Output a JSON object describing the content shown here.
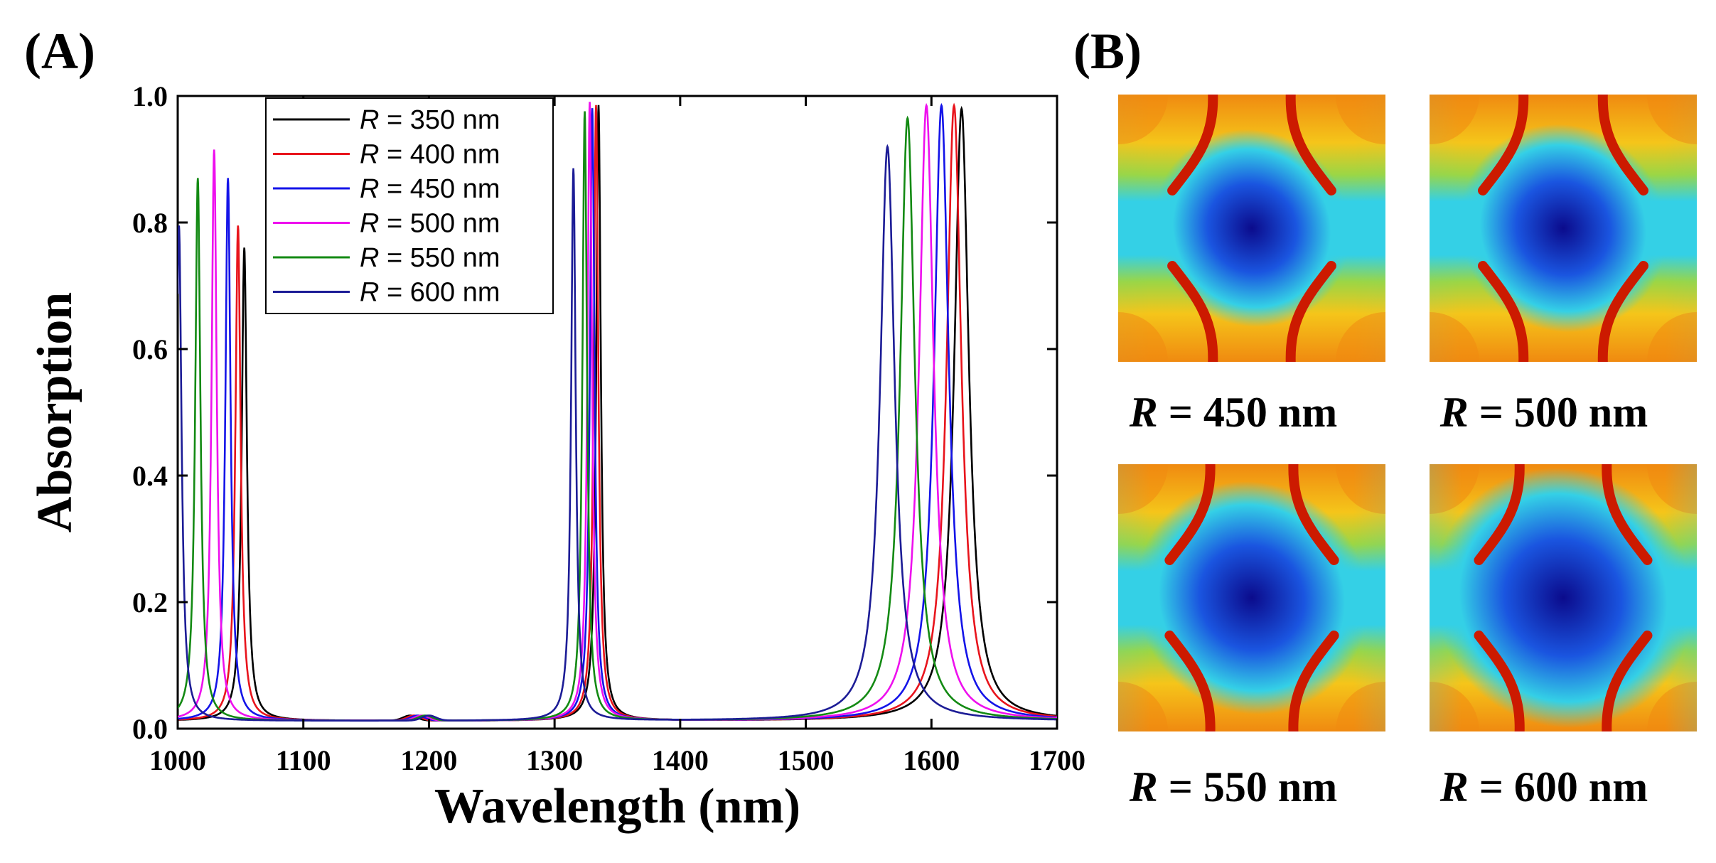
{
  "panel_a_label": "(A)",
  "panel_b_label": "(B)",
  "chart_data": {
    "type": "line",
    "title": "",
    "xlabel": "Wavelength (nm)",
    "ylabel": "Absorption",
    "xlim": [
      1000,
      1700
    ],
    "ylim": [
      0.0,
      1.0
    ],
    "xticks": [
      1000,
      1100,
      1200,
      1300,
      1400,
      1500,
      1600,
      1700
    ],
    "xtick_labels": [
      "1000",
      "1100",
      "1200",
      "1300",
      "1400",
      "1500",
      "1600",
      "1700"
    ],
    "yticks": [
      0.0,
      0.2,
      0.4,
      0.6,
      0.8,
      1.0
    ],
    "ytick_labels": [
      "0.0",
      "0.2",
      "0.4",
      "0.6",
      "0.8",
      "1.0"
    ],
    "baseline": 0.012,
    "legend_position": "top-left",
    "series": [
      {
        "name": "R = 350 nm",
        "var": "R",
        "rest": " = 350 nm",
        "color": "#000000",
        "peaks": [
          {
            "x": 1053,
            "y": 0.76,
            "w": 2.5
          },
          {
            "x": 1335,
            "y": 0.985,
            "w": 2.2
          },
          {
            "x": 1624,
            "y": 0.98,
            "w": 7
          }
        ]
      },
      {
        "name": "R = 400 nm",
        "var": "R",
        "rest": " = 400 nm",
        "color": "#e8141c",
        "peaks": [
          {
            "x": 1048,
            "y": 0.795,
            "w": 2.5
          },
          {
            "x": 1333,
            "y": 0.985,
            "w": 2.2
          },
          {
            "x": 1618,
            "y": 0.985,
            "w": 7
          }
        ]
      },
      {
        "name": "R = 450 nm",
        "var": "R",
        "rest": " = 450 nm",
        "color": "#1414e8",
        "peaks": [
          {
            "x": 1040,
            "y": 0.87,
            "w": 2.5
          },
          {
            "x": 1330,
            "y": 0.98,
            "w": 2.2
          },
          {
            "x": 1608,
            "y": 0.985,
            "w": 7
          }
        ]
      },
      {
        "name": "R = 500 nm",
        "var": "R",
        "rest": " = 500 nm",
        "color": "#ee10ee",
        "peaks": [
          {
            "x": 1029,
            "y": 0.915,
            "w": 2.5
          },
          {
            "x": 1328,
            "y": 0.99,
            "w": 2.2
          },
          {
            "x": 1596,
            "y": 0.985,
            "w": 7
          }
        ]
      },
      {
        "name": "R = 550 nm",
        "var": "R",
        "rest": " = 550 nm",
        "color": "#138a13",
        "peaks": [
          {
            "x": 1016,
            "y": 0.87,
            "w": 2.5
          },
          {
            "x": 1324,
            "y": 0.975,
            "w": 2.2
          },
          {
            "x": 1581,
            "y": 0.965,
            "w": 7
          }
        ]
      },
      {
        "name": "R = 600 nm",
        "var": "R",
        "rest": " = 600 nm",
        "color": "#1c1c96",
        "peaks": [
          {
            "x": 1001,
            "y": 0.795,
            "w": 2.5
          },
          {
            "x": 1315,
            "y": 0.885,
            "w": 2.2
          },
          {
            "x": 1565,
            "y": 0.92,
            "w": 7
          }
        ]
      }
    ]
  },
  "field_maps": [
    {
      "var": "R",
      "rest": " = 450 nm",
      "label": "R = 450 nm",
      "spread": 0.95
    },
    {
      "var": "R",
      "rest": " = 500 nm",
      "label": "R = 500 nm",
      "spread": 1.0
    },
    {
      "var": "R",
      "rest": " = 550 nm",
      "label": "R = 550 nm",
      "spread": 1.12
    },
    {
      "var": "R",
      "rest": " = 600 nm",
      "label": "R = 600 nm",
      "spread": 1.25
    }
  ],
  "colors": {
    "map_red": "#cc1a00",
    "map_orange": "#f08a10",
    "map_yellow": "#f5c51a",
    "map_green": "#9bd645",
    "map_cyan": "#34d0e6",
    "map_blue": "#1a55e0",
    "map_darkblue": "#0b0b8c"
  }
}
